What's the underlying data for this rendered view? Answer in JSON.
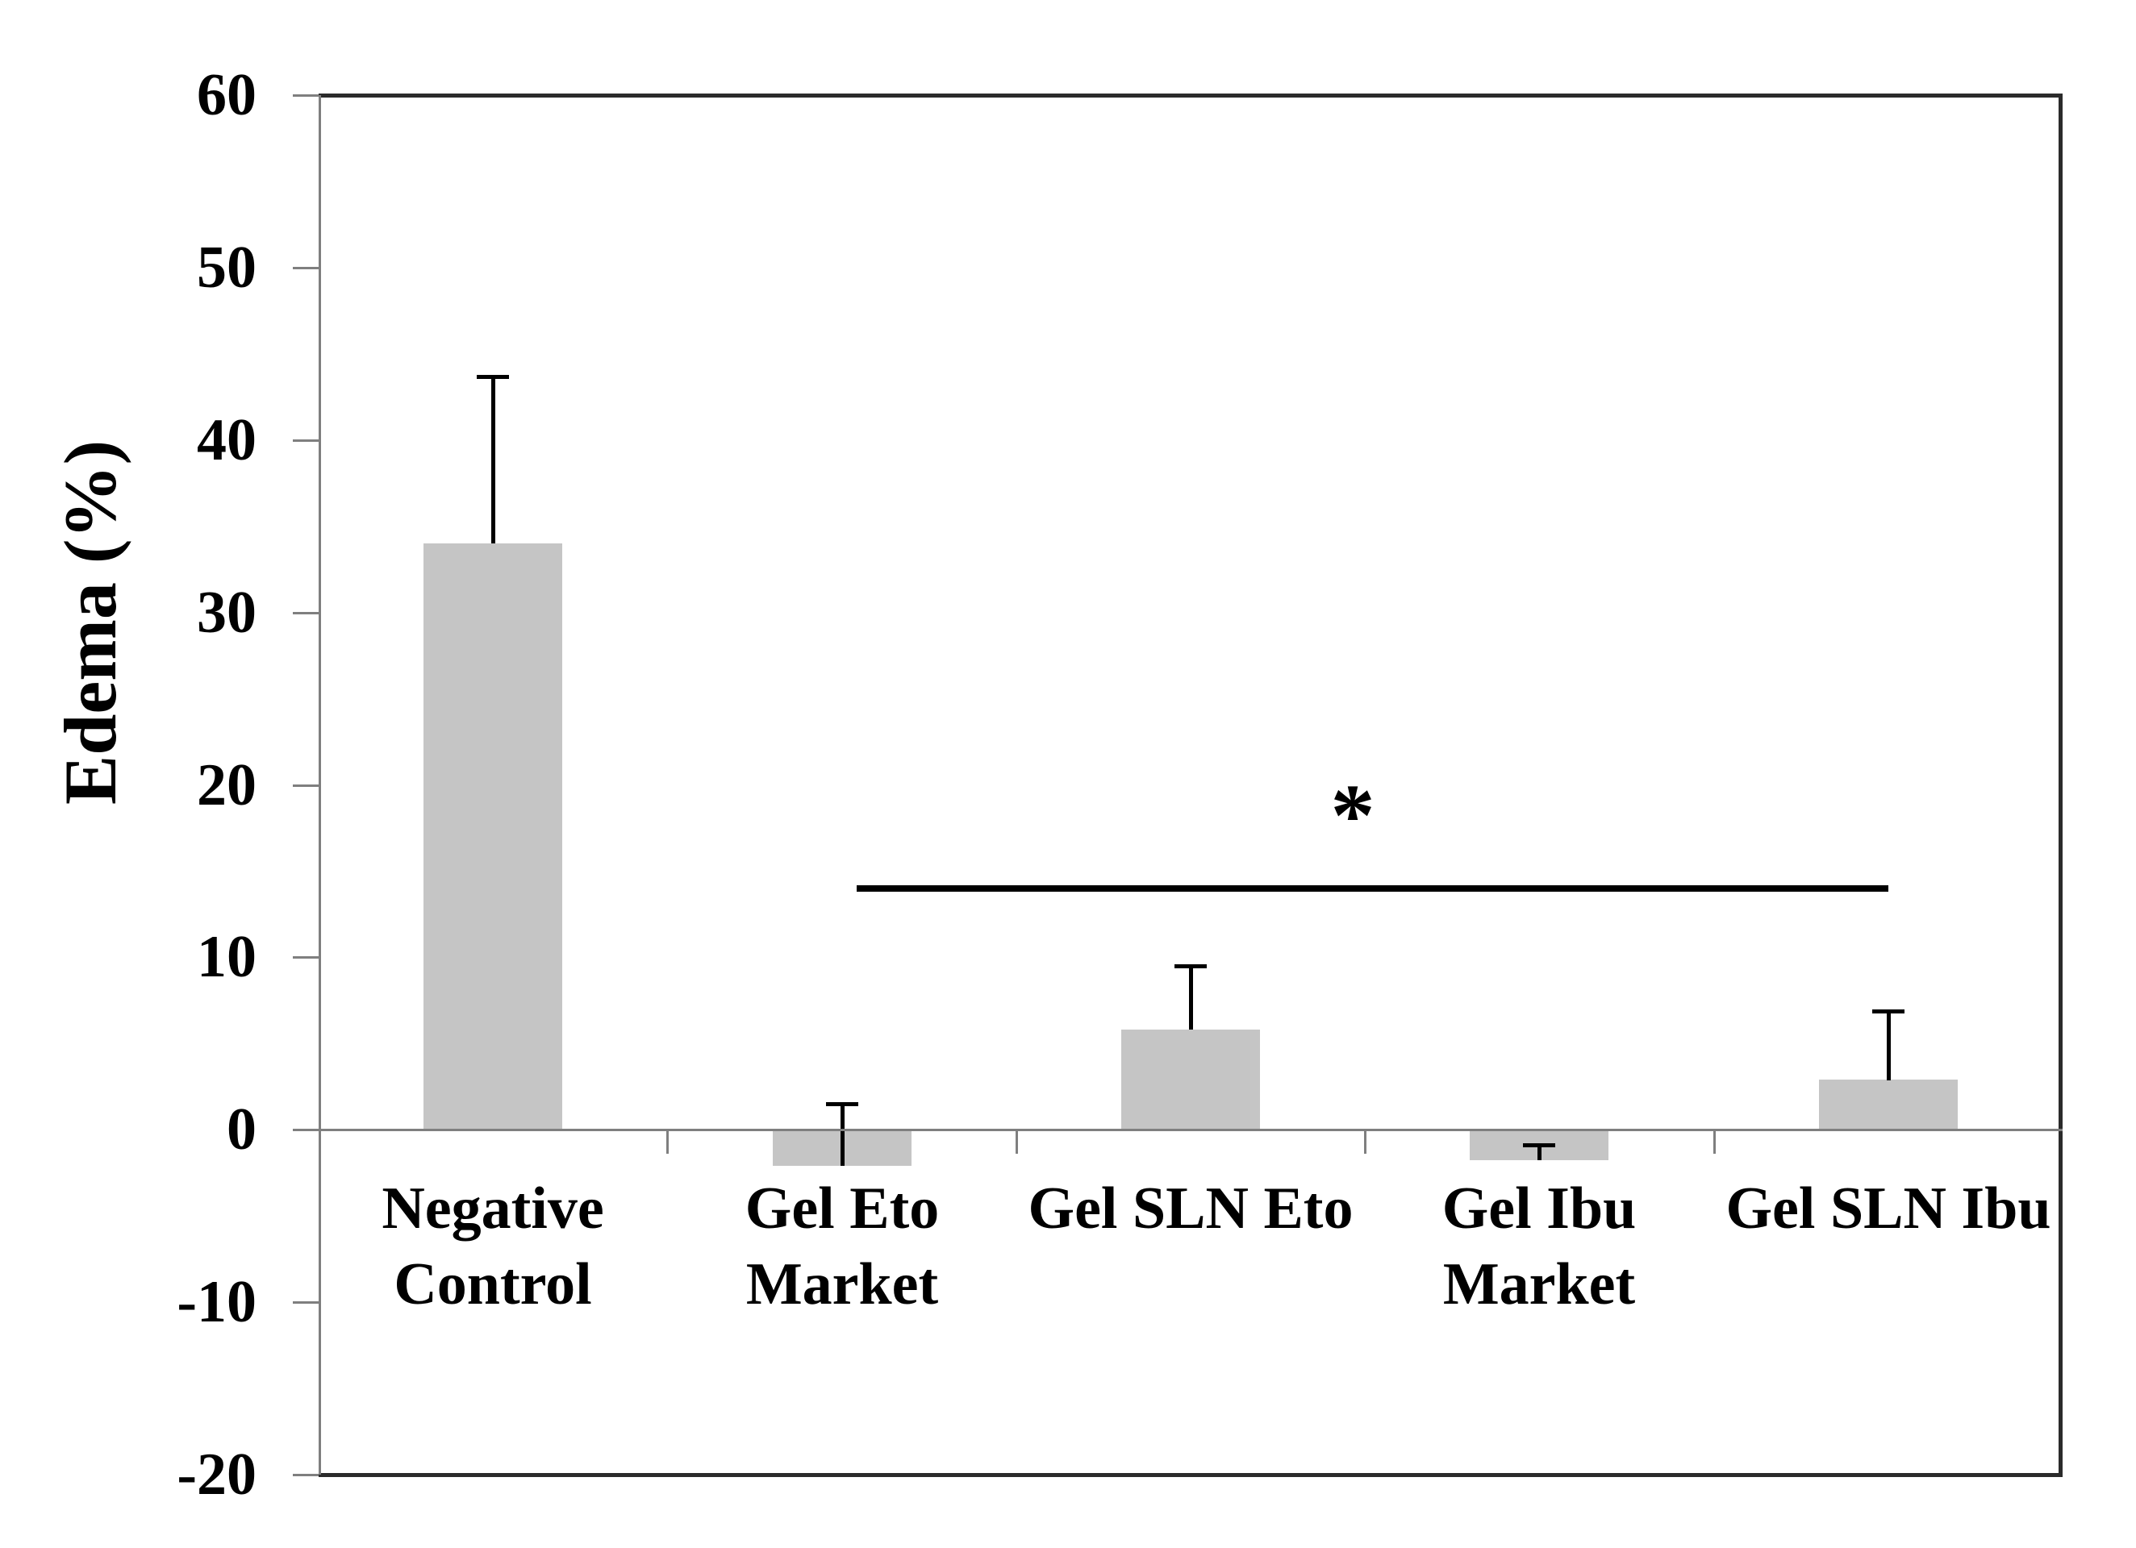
{
  "figure": {
    "background": "#ffffff"
  },
  "chart_data": {
    "type": "bar",
    "title": "",
    "xlabel": "",
    "ylabel": "Edema (%)",
    "ylim": [
      -20,
      60
    ],
    "grid": "none",
    "legend": "none",
    "bar_color": "#c5c5c5",
    "axis_color": "#7f7f7f",
    "frame_color": "#2b2b2b",
    "error_bar_color": "#000000",
    "yticks": [
      {
        "value": 60,
        "label": "60"
      },
      {
        "value": 50,
        "label": "50"
      },
      {
        "value": 40,
        "label": "40"
      },
      {
        "value": 30,
        "label": "30"
      },
      {
        "value": 20,
        "label": "20"
      },
      {
        "value": 10,
        "label": "10"
      },
      {
        "value": 0,
        "label": "0"
      },
      {
        "value": -10,
        "label": "-10"
      },
      {
        "value": -20,
        "label": "-20"
      }
    ],
    "categories": [
      {
        "label": "Negative Control",
        "lines": [
          "Negative",
          "Control"
        ]
      },
      {
        "label": "Gel Eto Market",
        "lines": [
          "Gel Eto",
          "Market"
        ]
      },
      {
        "label": "Gel SLN Eto",
        "lines": [
          "Gel SLN Eto"
        ]
      },
      {
        "label": "Gel Ibu Market",
        "lines": [
          "Gel Ibu",
          "Market"
        ]
      },
      {
        "label": "Gel SLN Ibu",
        "lines": [
          "Gel SLN Ibu"
        ]
      }
    ],
    "series": [
      {
        "name": "Edema (%)",
        "values": [
          34,
          -2.1,
          5.8,
          -1.8,
          2.9
        ],
        "error_whisker_top_values": [
          43.7,
          1.5,
          9.5,
          -0.9,
          6.9
        ]
      }
    ],
    "annotations": {
      "significance_marker": "*",
      "significance_line_y_value": 14,
      "significance_span_categories": [
        "Gel Eto Market",
        "Gel SLN Ibu"
      ]
    }
  }
}
